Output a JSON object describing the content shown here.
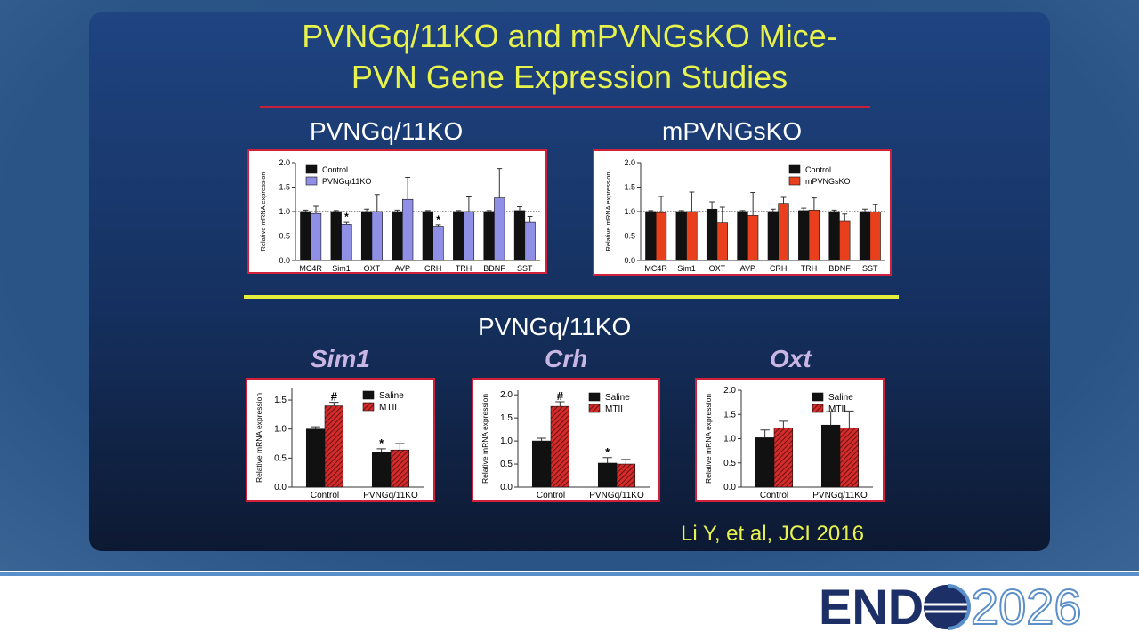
{
  "slide": {
    "title_line1": "PVNGq/11KO and mPVNGsKO Mice-",
    "title_line2": "PVN Gene Expression Studies",
    "section": "PVNGq/11KO",
    "citation": "Li Y, et al, JCI 2016",
    "logo_left": "END",
    "logo_right": "2026"
  },
  "chart_data": [
    {
      "type": "bar",
      "title": "PVNGq/11KO",
      "ylabel": "Relative mRNA expression",
      "categories": [
        "MC4R",
        "Sim1",
        "OXT",
        "AVP",
        "CRH",
        "TRH",
        "BDNF",
        "SST"
      ],
      "series": [
        {
          "name": "Control",
          "color": "#111111",
          "values": [
            1.0,
            1.0,
            1.0,
            1.0,
            1.0,
            1.0,
            1.0,
            1.02
          ],
          "errors": [
            0.03,
            0.02,
            0.05,
            0.03,
            0.02,
            0.02,
            0.02,
            0.08
          ]
        },
        {
          "name": "PVNGq/11KO",
          "color": "#8f8fe6",
          "values": [
            0.96,
            0.74,
            1.0,
            1.25,
            0.7,
            1.0,
            1.28,
            0.78
          ],
          "errors": [
            0.15,
            0.04,
            0.35,
            0.45,
            0.03,
            0.3,
            0.6,
            0.12
          ],
          "markers": [
            null,
            "*",
            null,
            null,
            "*",
            null,
            null,
            null
          ]
        }
      ],
      "ylim": [
        0,
        2
      ],
      "yticks": [
        {
          "value": 0,
          "label": "0.0"
        },
        0.5,
        {
          "value": 1,
          "label": "1.0"
        },
        1.5,
        {
          "value": 2,
          "label": "2.0"
        }
      ],
      "reference_line": 1,
      "legend": "upper left",
      "grid": false
    },
    {
      "type": "bar",
      "title": "mPVNGsKO",
      "ylabel": "Relative mRNA expression",
      "categories": [
        "MC4R",
        "Sim1",
        "OXT",
        "AVP",
        "CRH",
        "TRH",
        "BDNF",
        "SST"
      ],
      "series": [
        {
          "name": "Control",
          "color": "#111111",
          "values": [
            1.0,
            1.0,
            1.05,
            1.0,
            1.0,
            1.02,
            1.0,
            1.0
          ],
          "errors": [
            0.02,
            0.02,
            0.15,
            0.02,
            0.05,
            0.05,
            0.03,
            0.05
          ]
        },
        {
          "name": "mPVNGsKO",
          "color": "#e8401c",
          "values": [
            0.98,
            1.0,
            0.77,
            0.92,
            1.17,
            1.03,
            0.8,
            0.99
          ],
          "errors": [
            0.33,
            0.4,
            0.32,
            0.47,
            0.12,
            0.25,
            0.15,
            0.15
          ]
        }
      ],
      "ylim": [
        0,
        2
      ],
      "yticks": [
        {
          "value": 0,
          "label": "0.0"
        },
        0.5,
        {
          "value": 1,
          "label": "1.0"
        },
        1.5,
        {
          "value": 2,
          "label": "2.0"
        }
      ],
      "reference_line": 1,
      "legend": "upper right",
      "grid": false
    },
    {
      "type": "bar",
      "title": "Sim1",
      "ylabel": "Relative mRNA expression",
      "categories": [
        "Control",
        "PVNGq/11KO"
      ],
      "series": [
        {
          "name": "Saline",
          "color": "#111111",
          "values": [
            1.0,
            0.6
          ],
          "errors": [
            0.04,
            0.06
          ],
          "markers": [
            null,
            "*"
          ]
        },
        {
          "name": "MTII",
          "color": "#d42a2a",
          "hatch": true,
          "values": [
            1.4,
            0.64
          ],
          "errors": [
            0.06,
            0.11
          ],
          "markers": [
            "#",
            null
          ]
        }
      ],
      "ylim": [
        0,
        1.7
      ],
      "yticks": [
        {
          "value": 0,
          "label": "0.0"
        },
        0.5,
        {
          "value": 1,
          "label": "1.0"
        },
        1.5
      ],
      "legend": "upper right",
      "grid": false
    },
    {
      "type": "bar",
      "title": "Crh",
      "ylabel": "Relative mRNA expression",
      "categories": [
        "Control",
        "PVNGq/11KO"
      ],
      "series": [
        {
          "name": "Saline",
          "color": "#111111",
          "values": [
            1.0,
            0.52
          ],
          "errors": [
            0.06,
            0.12
          ],
          "markers": [
            null,
            "*"
          ]
        },
        {
          "name": "MTII",
          "color": "#d42a2a",
          "hatch": true,
          "values": [
            1.75,
            0.5
          ],
          "errors": [
            0.1,
            0.1
          ],
          "markers": [
            "#",
            null
          ]
        }
      ],
      "ylim": [
        0,
        2.1
      ],
      "yticks": [
        {
          "value": 0,
          "label": "0.0"
        },
        0.5,
        {
          "value": 1,
          "label": "1.0"
        },
        1.5,
        {
          "value": 2,
          "label": "2.0"
        }
      ],
      "legend": "upper right",
      "grid": false
    },
    {
      "type": "bar",
      "title": "Oxt",
      "ylabel": "Relative mRNA expression",
      "categories": [
        "Control",
        "PVNGq/11KO"
      ],
      "series": [
        {
          "name": "Saline",
          "color": "#111111",
          "values": [
            1.02,
            1.28
          ],
          "errors": [
            0.16,
            0.28
          ]
        },
        {
          "name": "MTII",
          "color": "#d42a2a",
          "hatch": true,
          "values": [
            1.22,
            1.22
          ],
          "errors": [
            0.14,
            0.35
          ]
        }
      ],
      "ylim": [
        0,
        2
      ],
      "yticks": [
        {
          "value": 0,
          "label": "0.0"
        },
        0.5,
        {
          "value": 1,
          "label": "1.0"
        },
        1.5,
        {
          "value": 2,
          "label": "2.0"
        }
      ],
      "legend": "upper right",
      "grid": false
    }
  ]
}
